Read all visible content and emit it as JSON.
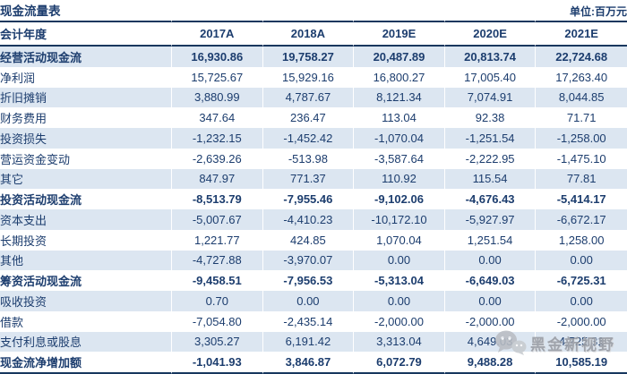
{
  "title": "现金流量表",
  "unit_label": "单位:百万元",
  "colors": {
    "navy_text": "#1C3D6E",
    "rule_line": "#17375E",
    "row_stripe": "#DCE6F1",
    "bottom_light_line": "#95B3D7",
    "watermark_gray": "#989CA3"
  },
  "table": {
    "header": {
      "label": "会计年度",
      "years": [
        "2017A",
        "2018A",
        "2019E",
        "2020E",
        "2021E"
      ]
    },
    "rows": [
      {
        "label": "经营活动现金流",
        "bold": true,
        "values": [
          "16,930.86",
          "19,758.27",
          "20,487.89",
          "20,813.74",
          "22,724.68"
        ]
      },
      {
        "label": "净利润",
        "bold": false,
        "values": [
          "15,725.67",
          "15,929.16",
          "16,800.27",
          "17,005.40",
          "17,263.40"
        ]
      },
      {
        "label": "折旧摊销",
        "bold": false,
        "values": [
          "3,880.99",
          "4,787.67",
          "8,121.34",
          "7,074.91",
          "8,044.85"
        ]
      },
      {
        "label": "财务费用",
        "bold": false,
        "values": [
          "347.64",
          "236.47",
          "113.04",
          "92.38",
          "71.71"
        ]
      },
      {
        "label": "投资损失",
        "bold": false,
        "values": [
          "-1,232.15",
          "-1,452.42",
          "-1,070.04",
          "-1,251.54",
          "-1,258.00"
        ]
      },
      {
        "label": "营运资金变动",
        "bold": false,
        "values": [
          "-2,639.26",
          "-513.98",
          "-3,587.64",
          "-2,222.95",
          "-1,475.10"
        ]
      },
      {
        "label": "其它",
        "bold": false,
        "values": [
          "847.97",
          "771.37",
          "110.92",
          "115.54",
          "77.81"
        ]
      },
      {
        "label": "投资活动现金流",
        "bold": true,
        "values": [
          "-8,513.79",
          "-7,955.46",
          "-9,102.06",
          "-4,676.43",
          "-5,414.17"
        ]
      },
      {
        "label": "资本支出",
        "bold": false,
        "values": [
          "-5,007.67",
          "-4,410.23",
          "-10,172.10",
          "-5,927.97",
          "-6,672.17"
        ]
      },
      {
        "label": "长期投资",
        "bold": false,
        "values": [
          "1,221.77",
          "424.85",
          "1,070.04",
          "1,251.54",
          "1,258.00"
        ]
      },
      {
        "label": "其他",
        "bold": false,
        "values": [
          "-4,727.88",
          "-3,970.07",
          "0.00",
          "0.00",
          "0.00"
        ]
      },
      {
        "label": "筹资活动现金流",
        "bold": true,
        "values": [
          "-9,458.51",
          "-7,956.53",
          "-5,313.04",
          "-6,649.03",
          "-6,725.31"
        ]
      },
      {
        "label": "吸收投资",
        "bold": false,
        "values": [
          "0.70",
          "0.00",
          "0.00",
          "0.00",
          "0.00"
        ]
      },
      {
        "label": "借款",
        "bold": false,
        "values": [
          "-7,054.80",
          "-2,435.14",
          "-2,000.00",
          "-2,000.00",
          "-2,000.00"
        ]
      },
      {
        "label": "支付利息或股息",
        "bold": false,
        "values": [
          "3,305.27",
          "6,191.42",
          "3,313.04",
          "4,649.03",
          "4,725.31"
        ]
      },
      {
        "label": "现金流净增加额",
        "bold": true,
        "values": [
          "-1,041.93",
          "3,846.87",
          "6,072.79",
          "9,488.28",
          "10,585.19"
        ]
      }
    ]
  },
  "watermark": {
    "icon": "wechat-bubbles-icon",
    "text": "黑金新视野"
  }
}
